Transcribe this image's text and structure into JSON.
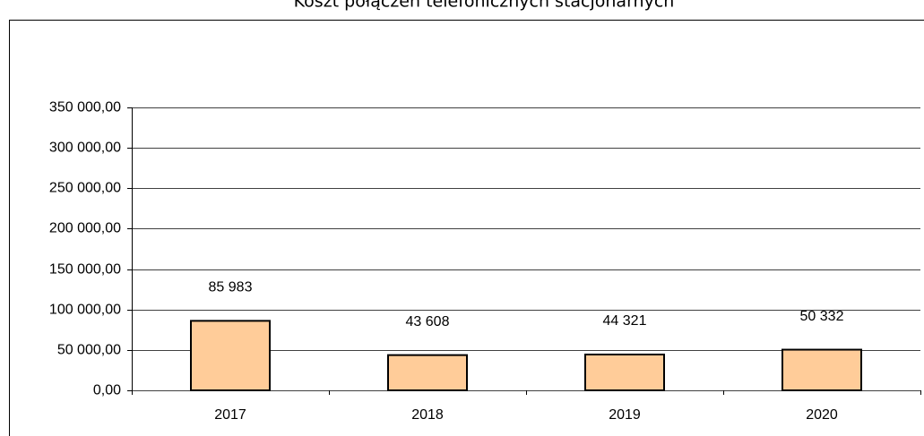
{
  "chart_data": {
    "type": "bar",
    "title": "Koszt połączeń telefonicznych stacjonarnych",
    "categories": [
      "2017",
      "2018",
      "2019",
      "2020"
    ],
    "values": [
      85983,
      43608,
      44321,
      50332
    ],
    "value_labels": [
      "85 983",
      "43 608",
      "44 321",
      "50 332"
    ],
    "color": "#ffcc99",
    "ylim": [
      0,
      350000
    ],
    "yticks": [
      {
        "value": 0,
        "label": "0,00"
      },
      {
        "value": 50000,
        "label": "50 000,00"
      },
      {
        "value": 100000,
        "label": "100 000,00"
      },
      {
        "value": 150000,
        "label": "150 000,00"
      },
      {
        "value": 200000,
        "label": "200 000,00"
      },
      {
        "value": 250000,
        "label": "250 000,00"
      },
      {
        "value": 300000,
        "label": "300 000,00"
      },
      {
        "value": 350000,
        "label": "350 000,00"
      }
    ],
    "grid": true
  }
}
